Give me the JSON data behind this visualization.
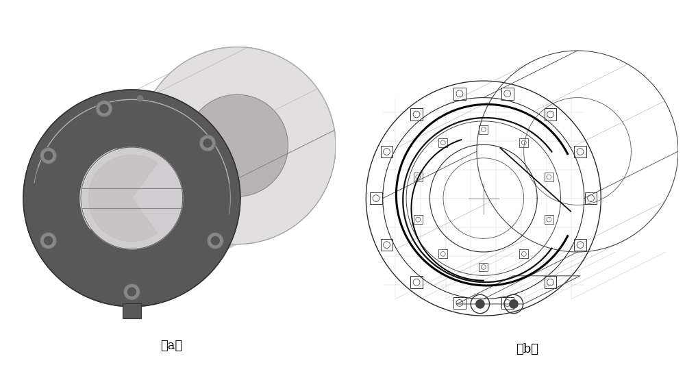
{
  "figsize": [
    10.0,
    5.71
  ],
  "dpi": 100,
  "background_color": "#ffffff",
  "label_a": "（a）",
  "label_b": "（b）",
  "label_fontsize": 13
}
